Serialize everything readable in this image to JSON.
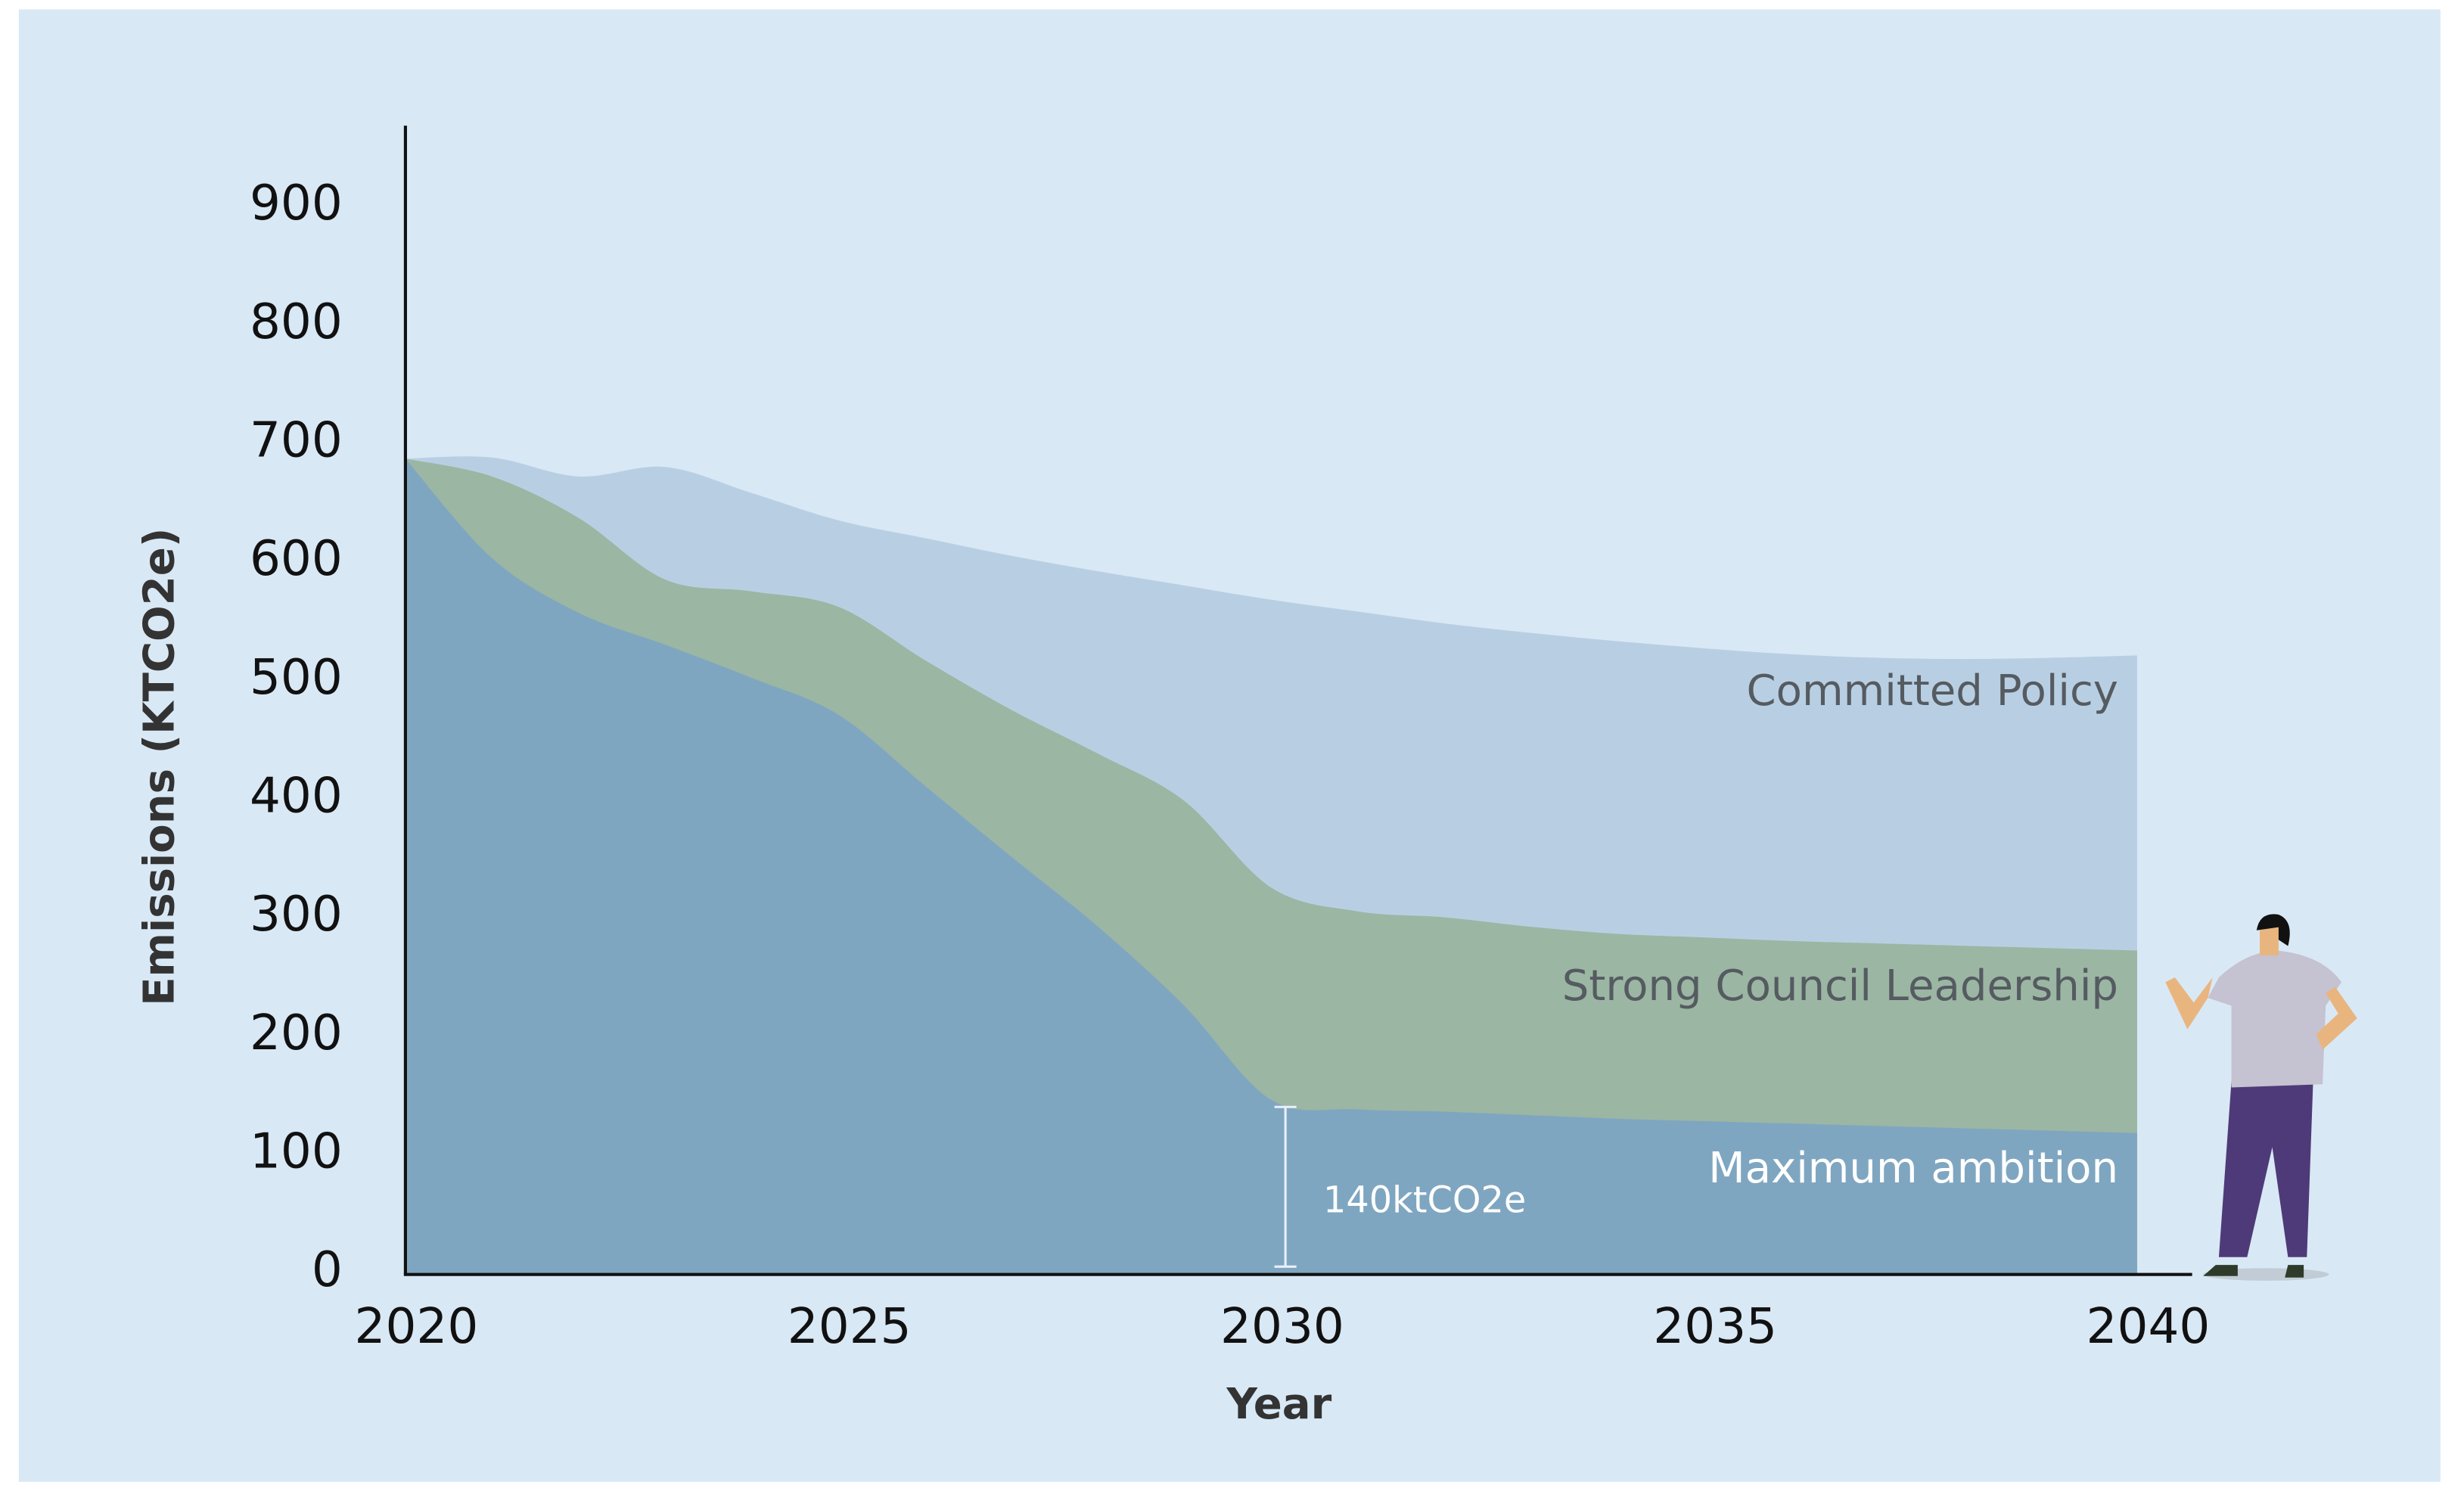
{
  "chart_data": {
    "type": "area",
    "x_label": "Year",
    "y_label": "Emissions (KTCO2e)",
    "x": [
      2020,
      2021,
      2022,
      2023,
      2024,
      2025,
      2026,
      2027,
      2028,
      2029,
      2030,
      2031,
      2032,
      2033,
      2034,
      2035,
      2036,
      2037,
      2038,
      2039,
      2040
    ],
    "series": [
      {
        "name": "Committed Policy",
        "color": "#b8cfe3",
        "label_color": "#555b61",
        "values": [
          687,
          688,
          672,
          680,
          658,
          635,
          620,
          605,
          592,
          580,
          568,
          558,
          548,
          540,
          533,
          527,
          522,
          519,
          518,
          519,
          521
        ]
      },
      {
        "name": "Strong Council Leadership",
        "color": "#9bb6a3",
        "label_color": "#555b61",
        "values": [
          687,
          672,
          637,
          585,
          575,
          562,
          517,
          475,
          438,
          398,
          325,
          305,
          300,
          292,
          286,
          283,
          280,
          278,
          276,
          274,
          272
        ]
      },
      {
        "name": "Maximum ambition",
        "color": "#7fa6c1",
        "label_color": "#ffffff",
        "values": [
          687,
          603,
          557,
          530,
          502,
          471,
          411,
          351,
          292,
          225,
          146,
          138,
          136,
          133,
          130,
          128,
          126,
          124,
          122,
          120,
          118
        ]
      }
    ],
    "annotation": {
      "text": "140ktCO2e",
      "x": 2030,
      "value": 140
    },
    "xlim": [
      2020,
      2040
    ],
    "xticks": [
      2020,
      2025,
      2030,
      2035,
      2040
    ],
    "ylim": [
      0,
      960
    ],
    "yticks": [
      0,
      100,
      200,
      300,
      400,
      500,
      600,
      700,
      800,
      900
    ],
    "grid": false
  }
}
